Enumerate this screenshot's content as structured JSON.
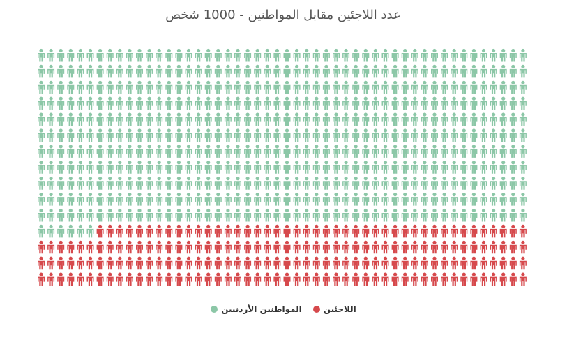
{
  "chart_data": {
    "type": "item",
    "title": "عدد اللاجئين مقابل المواطنين - 1000 شخص",
    "series": [
      {
        "name": "المواطنين الأردنيين",
        "color": "#8cc7a7",
        "values": [
          556
        ]
      },
      {
        "name": "اللاجئين",
        "color": "#d6494c",
        "values": [
          194
        ]
      }
    ]
  }
}
